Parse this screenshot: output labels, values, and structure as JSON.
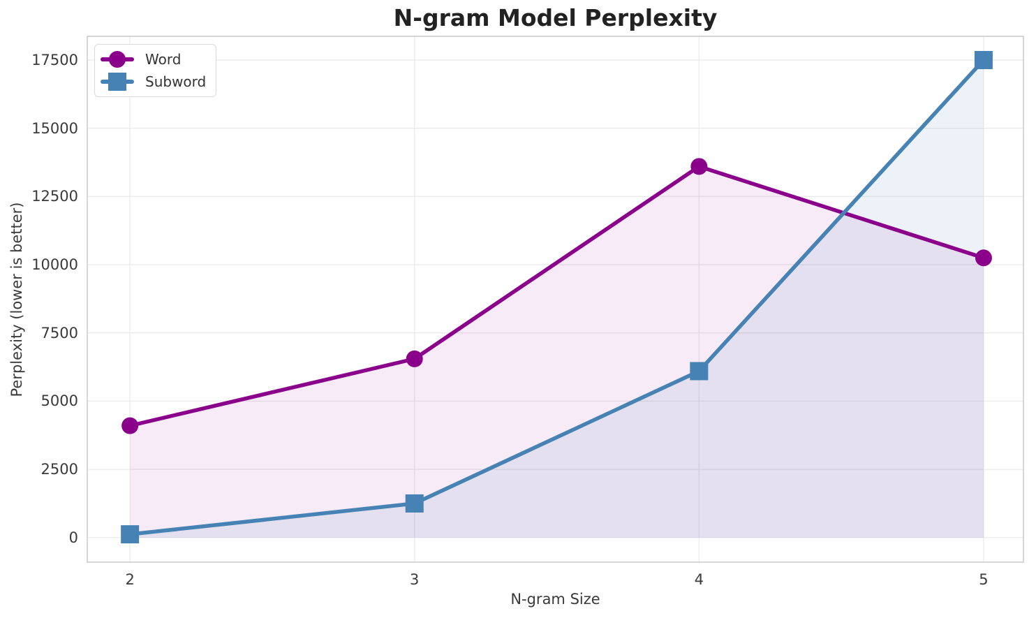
{
  "chart_data": {
    "type": "line",
    "title": "N-gram Model Perplexity",
    "xlabel": "N-gram Size",
    "ylabel": "Perplexity (lower is better)",
    "x": [
      2,
      3,
      4,
      5
    ],
    "series": [
      {
        "name": "Word",
        "marker": "circle",
        "color": "#8B008B",
        "fill_alpha": 0.08,
        "values": [
          4100,
          6550,
          13600,
          10250
        ]
      },
      {
        "name": "Subword",
        "marker": "square",
        "color": "#4682B4",
        "fill_alpha": 0.1,
        "values": [
          120,
          1250,
          6100,
          17500
        ]
      }
    ],
    "fill_between_to": 0,
    "xticks": [
      2,
      3,
      4,
      5
    ],
    "yticks": [
      0,
      2500,
      5000,
      7500,
      10000,
      12500,
      15000,
      17500
    ],
    "xlim": [
      1.85,
      5.14
    ],
    "ylim": [
      -900,
      18370
    ],
    "grid": true,
    "legend_position": "upper left",
    "style": {
      "grid_color": "#ececec",
      "spine_color": "#cccccc",
      "tick_text_color": "#3a3a3a",
      "title_color": "#222222",
      "background": "#ffffff"
    }
  }
}
